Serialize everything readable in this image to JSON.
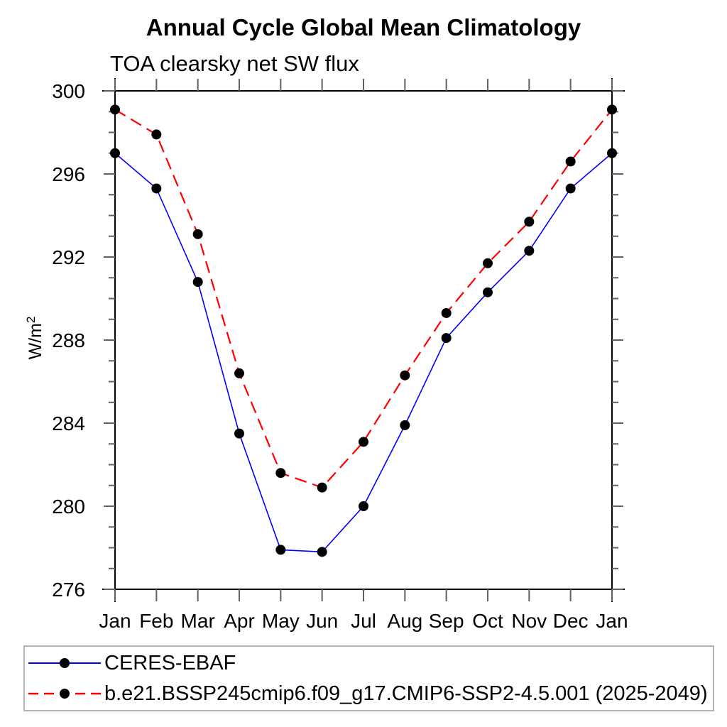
{
  "chart_data": {
    "type": "line",
    "title": "Annual Cycle Global Mean Climatology",
    "subtitle": "TOA clearsky net SW flux",
    "ylabel_base": "W/m",
    "ylabel_superscript": "2",
    "categories": [
      "Jan",
      "Feb",
      "Mar",
      "Apr",
      "May",
      "Jun",
      "Jul",
      "Aug",
      "Sep",
      "Oct",
      "Nov",
      "Dec",
      "Jan"
    ],
    "ylim": [
      276,
      300
    ],
    "yticks": [
      276,
      280,
      284,
      288,
      292,
      296,
      300
    ],
    "y_minor_tick_step": 1,
    "grid": false,
    "legend_position": "bottom-left-boxed",
    "marker_color": "#000000",
    "axis_color": "#000000",
    "tick_color": "#606060",
    "legend_border_color": "#b3b3b3",
    "series": [
      {
        "name": "CERES-EBAF",
        "color": "#0000ff",
        "line_style": "solid",
        "marker": "filled-circle",
        "values": [
          297.0,
          295.3,
          290.8,
          283.5,
          277.9,
          277.8,
          280.0,
          283.9,
          288.1,
          290.3,
          292.3,
          295.3,
          297.0
        ]
      },
      {
        "name": "b.e21.BSSP245cmip6.f09_g17.CMIP6-SSP2-4.5.001 (2025-2049)",
        "color": "#ff0000",
        "line_style": "dashed",
        "marker": "filled-circle",
        "values": [
          299.1,
          297.9,
          293.1,
          286.4,
          281.6,
          280.9,
          283.1,
          286.3,
          289.3,
          291.7,
          293.7,
          296.6,
          299.1
        ]
      }
    ]
  }
}
